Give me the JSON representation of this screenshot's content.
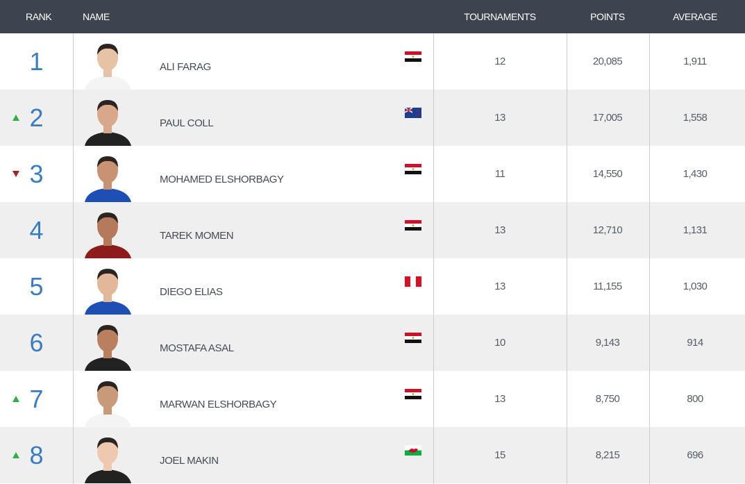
{
  "table": {
    "headers": [
      "RANK",
      "NAME",
      "TOURNAMENTS",
      "POINTS",
      "AVERAGE"
    ],
    "rows": [
      {
        "rank": 1,
        "name": "ALI FARAG",
        "flag": "egypt",
        "tournaments": 12,
        "points": "20,085",
        "average": "1,911"
      },
      {
        "rank": 2,
        "movement": "up",
        "name": "PAUL COLL",
        "flag": "new-zealand",
        "tournaments": 13,
        "points": "17,005",
        "average": "1,558"
      },
      {
        "rank": 3,
        "movement": "down",
        "name": "MOHAMED ELSHORBAGY",
        "flag": "egypt",
        "tournaments": 11,
        "points": "14,550",
        "average": "1,430"
      },
      {
        "rank": 4,
        "name": "TAREK MOMEN",
        "flag": "egypt",
        "tournaments": 13,
        "points": "12,710",
        "average": "1,131"
      },
      {
        "rank": 5,
        "name": "DIEGO ELIAS",
        "flag": "peru",
        "tournaments": 13,
        "points": "11,155",
        "average": "1,030"
      },
      {
        "rank": 6,
        "name": "MOSTAFA ASAL",
        "flag": "egypt",
        "tournaments": 10,
        "points": "9,143",
        "average": "914"
      },
      {
        "rank": 7,
        "movement": "up",
        "name": "MARWAN ELSHORBAGY",
        "flag": "egypt",
        "tournaments": 13,
        "points": "8,750",
        "average": "800"
      },
      {
        "rank": 8,
        "movement": "up",
        "name": "JOEL MAKIN",
        "flag": "wales",
        "tournaments": 15,
        "points": "8,215",
        "average": "696"
      }
    ]
  }
}
